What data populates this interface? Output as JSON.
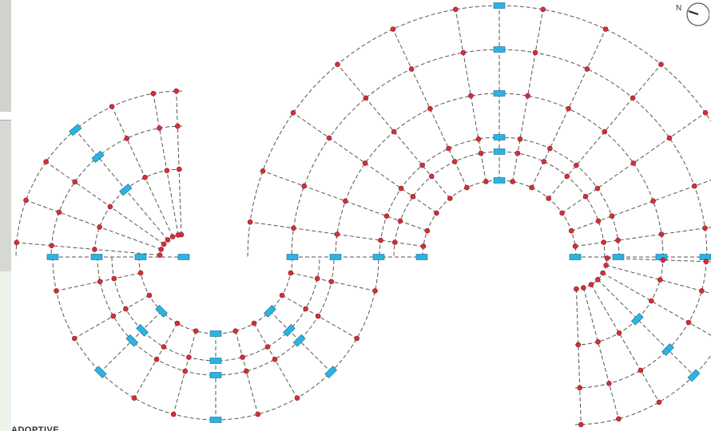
{
  "figure": {
    "north_label": "N",
    "footer_label": "ADOPTIVE"
  },
  "colors": {
    "background": "#ffffff",
    "grid_line": "#555555",
    "node": "#d2303a",
    "node_edge": "#8e1a22",
    "support": "#2bb3e3",
    "support_edge": "#156c8c"
  },
  "legend_icons": [
    "north-arrow-icon"
  ]
}
